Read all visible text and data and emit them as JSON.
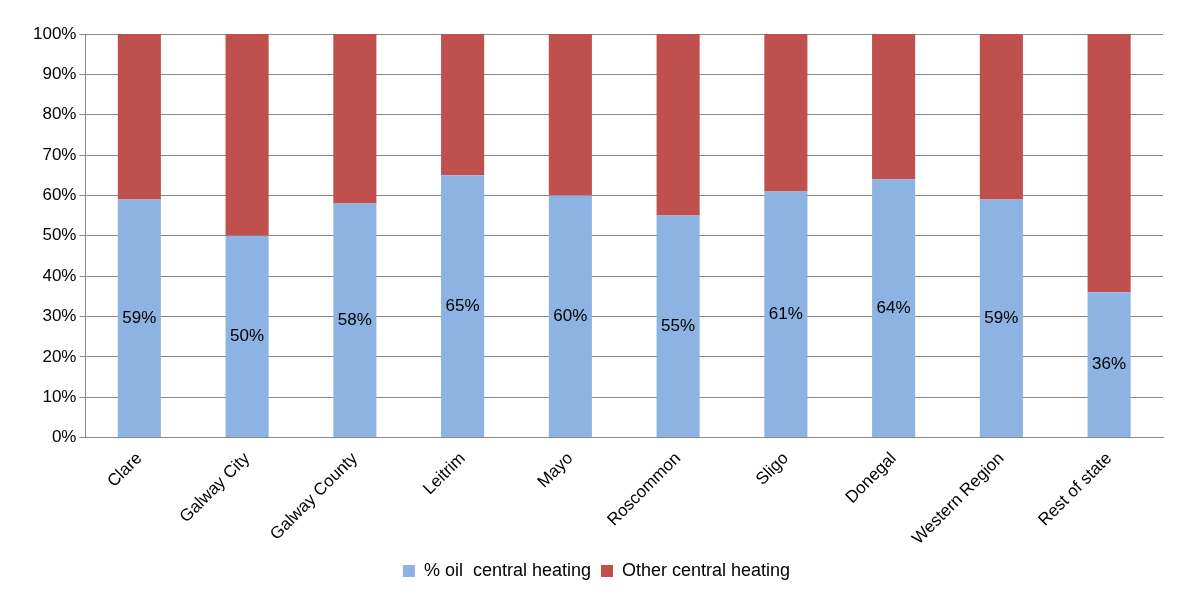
{
  "chart_data": {
    "type": "bar",
    "stacked": true,
    "categories": [
      "Clare",
      "Galway City",
      "Galway County",
      "Leitrim",
      "Mayo",
      "Roscommon",
      "Sligo",
      "Donegal",
      "Western Region",
      "Rest of state"
    ],
    "series": [
      {
        "name": "% oil  central heating",
        "color": "#8db3e2",
        "values": [
          59,
          50,
          58,
          65,
          60,
          55,
          61,
          64,
          59,
          36
        ],
        "value_labels": [
          "59%",
          "50%",
          "58%",
          "65%",
          "60%",
          "55%",
          "61%",
          "64%",
          "59%",
          "36%"
        ]
      },
      {
        "name": "Other central heating",
        "color": "#c0504d",
        "values": [
          41,
          50,
          42,
          35,
          40,
          45,
          39,
          36,
          41,
          64
        ]
      }
    ],
    "ylim": [
      0,
      100
    ],
    "yticks": [
      {
        "value": 0,
        "label": "0%"
      },
      {
        "value": 10,
        "label": "10%"
      },
      {
        "value": 20,
        "label": "20%"
      },
      {
        "value": 30,
        "label": "30%"
      },
      {
        "value": 40,
        "label": "40%"
      },
      {
        "value": 50,
        "label": "50%"
      },
      {
        "value": 60,
        "label": "60%"
      },
      {
        "value": 70,
        "label": "70%"
      },
      {
        "value": 80,
        "label": "80%"
      },
      {
        "value": 90,
        "label": "90%"
      },
      {
        "value": 100,
        "label": "100%"
      }
    ],
    "grid": "y",
    "legend": "bottom"
  }
}
